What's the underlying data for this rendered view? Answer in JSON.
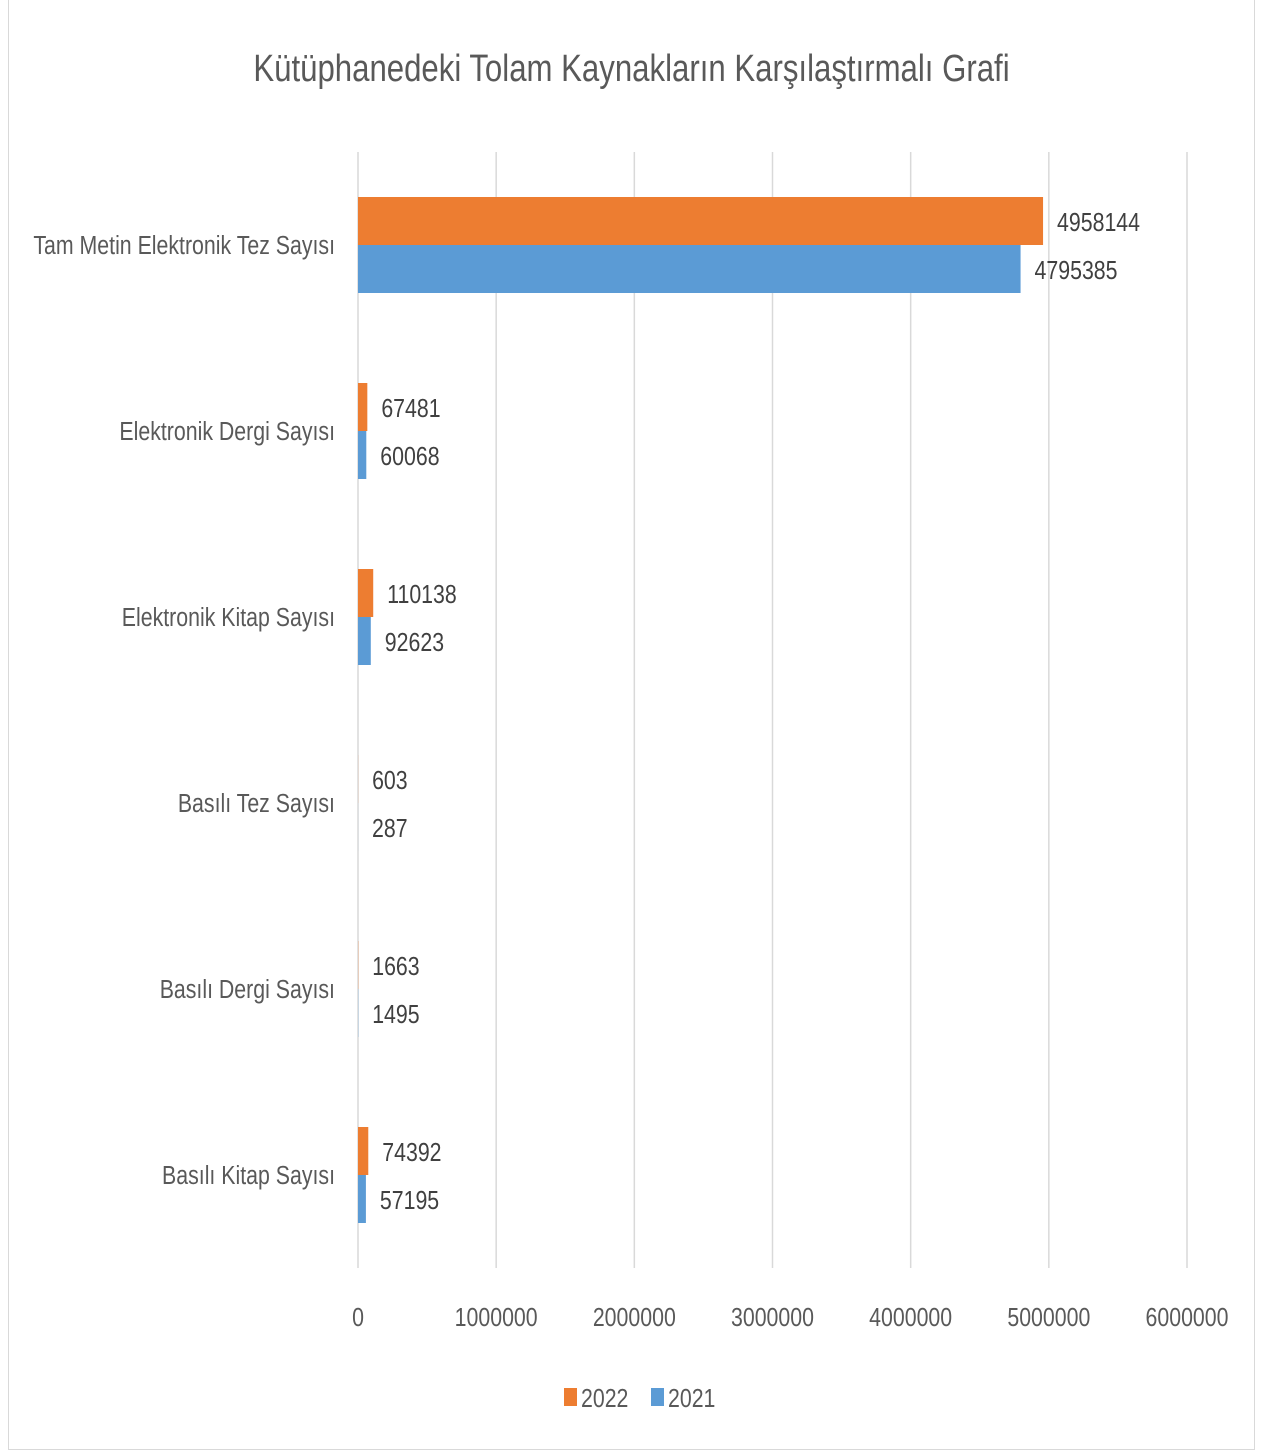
{
  "chart_data": {
    "type": "bar",
    "orientation": "horizontal",
    "title": "Kütüphanedeki  Tolam Kaynakların Karşılaştırmalı Grafi",
    "categories": [
      "Tam Metin Elektronik Tez Sayısı",
      "Elektronik Dergi Sayısı",
      "Elektronik Kitap Sayısı",
      "Basılı Tez Sayısı",
      "Basılı Dergi Sayısı",
      "Basılı Kitap Sayısı"
    ],
    "series": [
      {
        "name": "2022",
        "color": "#ed7d31",
        "values": [
          4958144,
          67481,
          110138,
          603,
          1663,
          74392
        ],
        "labels": [
          "4958144",
          "67481",
          "110138",
          "603",
          "1663",
          "74392"
        ]
      },
      {
        "name": "2021",
        "color": "#5b9bd5",
        "values": [
          4795385,
          60068,
          92623,
          287,
          1495,
          57195
        ],
        "labels": [
          "4795385",
          "60068",
          "92623",
          "287",
          "1495",
          "57195"
        ]
      }
    ],
    "xlim": [
      0,
      6000000
    ],
    "xticks": [
      "0",
      "1000000",
      "2000000",
      "3000000",
      "4000000",
      "5000000",
      "6000000"
    ],
    "xtick_values": [
      0,
      1000000,
      2000000,
      3000000,
      4000000,
      5000000,
      6000000
    ],
    "grid": true,
    "legend_position": "bottom",
    "gridline_color": "#d9d9d9"
  }
}
